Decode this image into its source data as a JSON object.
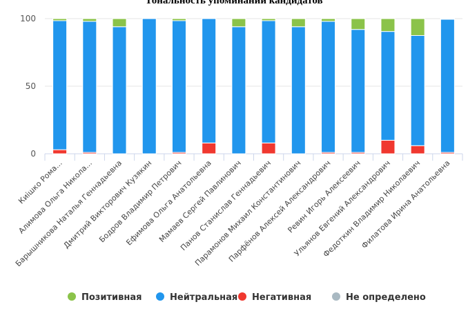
{
  "chart_data": {
    "type": "bar",
    "stacked": true,
    "title": "Тональность упоминаний кандидатов",
    "xlabel": "",
    "ylabel": "",
    "ylim": [
      0,
      100
    ],
    "yticks": [
      "0",
      "50",
      "100"
    ],
    "grid": true,
    "legend_position": "bottom",
    "categories": [
      "Киішко Рома...",
      "Алимова Ольга Никола...",
      "Барышникова Наталья Геннадьевна",
      "Дмитрий Викторович Кузякин",
      "Бодров Владимир Петрович",
      "Ефимова Ольга Анатольевна",
      "Мамаев Сергей Павлинович",
      "Панов Станислав Геннадьевич",
      "Парамонов Михаил Константинович",
      "Парфёнов Алексей Александрович",
      "Ревин Игорь Алексеевич",
      "Ульянов Евгений Александрович",
      "Федоткин Владимир Николаевич",
      "Филатова Ирина Анатольевна"
    ],
    "series": [
      {
        "name": "Негативная",
        "color": "#f0382f",
        "values": [
          3,
          1,
          0,
          0,
          1,
          8,
          0,
          8,
          0,
          1,
          1,
          10,
          6,
          1
        ]
      },
      {
        "name": "Нейтральная",
        "color": "#2196ed",
        "values": [
          95.5,
          97,
          94,
          100,
          97.5,
          92,
          94,
          90.5,
          94,
          97,
          91,
          80.5,
          81.5,
          98.5
        ]
      },
      {
        "name": "Позитивная",
        "color": "#8bc34a",
        "values": [
          1.5,
          2,
          6,
          0,
          1.5,
          0,
          6,
          1.5,
          6,
          2,
          8,
          9.5,
          12.5,
          0.5
        ]
      },
      {
        "name": "Не определено",
        "color": "#a9b9c2",
        "values": [
          0,
          0,
          0,
          0,
          0,
          0,
          0,
          0,
          0,
          0,
          0,
          0,
          0,
          0
        ]
      }
    ],
    "legend_order": [
      "Позитивная",
      "Нейтральная",
      "Негативная",
      "Не определено"
    ]
  }
}
